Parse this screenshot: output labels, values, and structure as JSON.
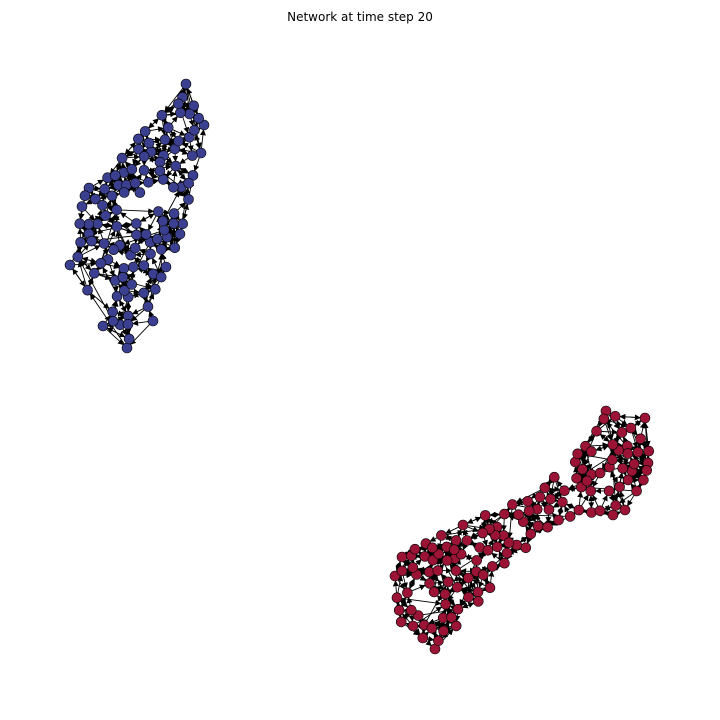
{
  "figure": {
    "title": "Network at time step 20"
  },
  "colors": {
    "background": "#ffffff",
    "edge": "#000000",
    "node_stroke": "#000000",
    "community_blue": "#3b3f8f",
    "community_red": "#9b1436"
  },
  "graph": {
    "directed": true,
    "communities": [
      {
        "name": "blue-community",
        "color": "#3b3f8f"
      },
      {
        "name": "red-community",
        "color": "#9b1436"
      }
    ]
  }
}
